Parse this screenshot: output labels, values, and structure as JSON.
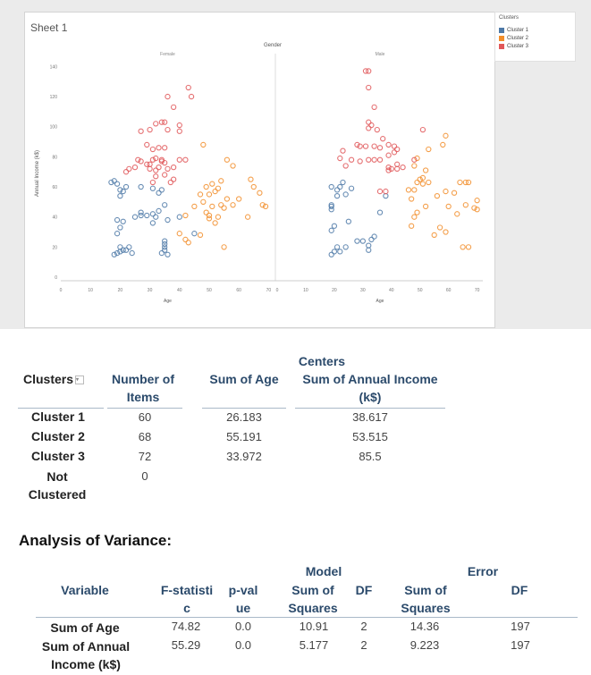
{
  "sheet": {
    "title": "Sheet 1"
  },
  "legend": {
    "title": "Clusters",
    "items": [
      {
        "label": "Cluster 1",
        "color": "#4e79a7"
      },
      {
        "label": "Cluster 2",
        "color": "#f28e2b"
      },
      {
        "label": "Cluster 3",
        "color": "#e15759"
      }
    ]
  },
  "chart_data": {
    "type": "scatter",
    "title": "",
    "column_header": "Gender",
    "panels": [
      "Female",
      "Male"
    ],
    "xlabel": "Age",
    "ylabel": "Annual Income (k$)",
    "xlim": [
      0,
      72
    ],
    "ylim": [
      0,
      145
    ],
    "xticks": [
      "0",
      "10",
      "20",
      "30",
      "40",
      "50",
      "60",
      "70"
    ],
    "yticks": [
      "0",
      "20",
      "40",
      "60",
      "80",
      "100",
      "120",
      "140"
    ],
    "series": [
      {
        "name": "Cluster 1",
        "color": "#4e79a7",
        "points": {
          "Female": [
            [
              18,
              15
            ],
            [
              19,
              16
            ],
            [
              20,
              17
            ],
            [
              21,
              18
            ],
            [
              20,
              20
            ],
            [
              19,
              29
            ],
            [
              20,
              33
            ],
            [
              21,
              37
            ],
            [
              19,
              38
            ],
            [
              25,
              40
            ],
            [
              27,
              41
            ],
            [
              29,
              41
            ],
            [
              31,
              42
            ],
            [
              32,
              40
            ],
            [
              33,
              44
            ],
            [
              35,
              48
            ],
            [
              36,
              38
            ],
            [
              31,
              36
            ],
            [
              27,
              43
            ],
            [
              40,
              40
            ],
            [
              45,
              29
            ],
            [
              36,
              15
            ],
            [
              35,
              18
            ],
            [
              35,
              20
            ],
            [
              35,
              22
            ],
            [
              35,
              24
            ],
            [
              34,
              16
            ],
            [
              24,
              16
            ],
            [
              23,
              20
            ],
            [
              22,
              18
            ],
            [
              20,
              54
            ],
            [
              21,
              57
            ],
            [
              20,
              58
            ],
            [
              17,
              63
            ],
            [
              18,
              64
            ],
            [
              19,
              62
            ],
            [
              22,
              60
            ],
            [
              27,
              60
            ],
            [
              31,
              59
            ],
            [
              33,
              56
            ],
            [
              34,
              58
            ]
          ],
          "Male": [
            [
              19,
              15
            ],
            [
              20,
              17
            ],
            [
              22,
              17
            ],
            [
              21,
              20
            ],
            [
              24,
              20
            ],
            [
              30,
              24
            ],
            [
              33,
              25
            ],
            [
              34,
              27
            ],
            [
              28,
              24
            ],
            [
              32,
              21
            ],
            [
              32,
              18
            ],
            [
              19,
              31
            ],
            [
              20,
              34
            ],
            [
              25,
              37
            ],
            [
              19,
              45
            ],
            [
              19,
              48
            ],
            [
              19,
              47
            ],
            [
              21,
              54
            ],
            [
              21,
              58
            ],
            [
              22,
              60
            ],
            [
              23,
              63
            ],
            [
              19,
              60
            ],
            [
              24,
              55
            ],
            [
              26,
              59
            ],
            [
              36,
              43
            ],
            [
              38,
              54
            ]
          ]
        }
      },
      {
        "name": "Cluster 2",
        "color": "#f28e2b",
        "points": {
          "Female": [
            [
              40,
              29
            ],
            [
              42,
              25
            ],
            [
              43,
              23
            ],
            [
              47,
              28
            ],
            [
              50,
              39
            ],
            [
              52,
              36
            ],
            [
              53,
              40
            ],
            [
              55,
              46
            ],
            [
              49,
              43
            ],
            [
              50,
              41
            ],
            [
              51,
              47
            ],
            [
              54,
              48
            ],
            [
              56,
              52
            ],
            [
              48,
              50
            ],
            [
              45,
              47
            ],
            [
              42,
              41
            ],
            [
              52,
              57
            ],
            [
              53,
              59
            ],
            [
              51,
              62
            ],
            [
              54,
              64
            ],
            [
              49,
              60
            ],
            [
              47,
              55
            ],
            [
              50,
              55
            ],
            [
              58,
              48
            ],
            [
              60,
              52
            ],
            [
              63,
              40
            ],
            [
              65,
              60
            ],
            [
              67,
              56
            ],
            [
              69,
              47
            ],
            [
              68,
              48
            ],
            [
              55,
              20
            ],
            [
              48,
              88
            ],
            [
              56,
              78
            ],
            [
              58,
              74
            ],
            [
              64,
              65
            ]
          ],
          "Male": [
            [
              47,
              34
            ],
            [
              48,
              40
            ],
            [
              49,
              43
            ],
            [
              52,
              47
            ],
            [
              55,
              28
            ],
            [
              57,
              33
            ],
            [
              59,
              30
            ],
            [
              60,
              47
            ],
            [
              63,
              42
            ],
            [
              65,
              20
            ],
            [
              67,
              20
            ],
            [
              66,
              48
            ],
            [
              70,
              45
            ],
            [
              69,
              46
            ],
            [
              70,
              51
            ],
            [
              67,
              63
            ],
            [
              66,
              63
            ],
            [
              64,
              63
            ],
            [
              62,
              56
            ],
            [
              59,
              57
            ],
            [
              56,
              54
            ],
            [
              53,
              63
            ],
            [
              48,
              58
            ],
            [
              49,
              63
            ],
            [
              50,
              65
            ],
            [
              51,
              66
            ],
            [
              47,
              52
            ],
            [
              46,
              58
            ],
            [
              48,
              74
            ],
            [
              49,
              79
            ],
            [
              53,
              85
            ],
            [
              58,
              88
            ],
            [
              59,
              94
            ],
            [
              52,
              71
            ],
            [
              51,
              62
            ]
          ]
        }
      },
      {
        "name": "Cluster 3",
        "color": "#e15759",
        "points": {
          "Female": [
            [
              36,
              120
            ],
            [
              38,
              113
            ],
            [
              43,
              126
            ],
            [
              44,
              120
            ],
            [
              27,
              97
            ],
            [
              30,
              98
            ],
            [
              32,
              102
            ],
            [
              34,
              103
            ],
            [
              35,
              103
            ],
            [
              36,
              98
            ],
            [
              40,
              101
            ],
            [
              40,
              97
            ],
            [
              29,
              88
            ],
            [
              31,
              85
            ],
            [
              33,
              86
            ],
            [
              35,
              86
            ],
            [
              32,
              79
            ],
            [
              34,
              78
            ],
            [
              27,
              77
            ],
            [
              29,
              75
            ],
            [
              30,
              72
            ],
            [
              31,
              78
            ],
            [
              32,
              71
            ],
            [
              26,
              78
            ],
            [
              25,
              73
            ],
            [
              22,
              70
            ],
            [
              23,
              72
            ],
            [
              30,
              75
            ],
            [
              33,
              73
            ],
            [
              35,
              76
            ],
            [
              36,
              72
            ],
            [
              38,
              73
            ],
            [
              40,
              78
            ],
            [
              42,
              78
            ],
            [
              35,
              68
            ],
            [
              37,
              63
            ],
            [
              38,
              65
            ],
            [
              32,
              67
            ],
            [
              31,
              63
            ],
            [
              34,
              77
            ]
          ],
          "Male": [
            [
              31,
              137
            ],
            [
              32,
              137
            ],
            [
              32,
              126
            ],
            [
              34,
              113
            ],
            [
              32,
              103
            ],
            [
              33,
              101
            ],
            [
              32,
              99
            ],
            [
              35,
              98
            ],
            [
              37,
              92
            ],
            [
              28,
              88
            ],
            [
              29,
              87
            ],
            [
              31,
              87
            ],
            [
              34,
              87
            ],
            [
              36,
              86
            ],
            [
              39,
              88
            ],
            [
              41,
              87
            ],
            [
              42,
              85
            ],
            [
              41,
              83
            ],
            [
              39,
              81
            ],
            [
              36,
              78
            ],
            [
              34,
              78
            ],
            [
              32,
              78
            ],
            [
              29,
              77
            ],
            [
              26,
              78
            ],
            [
              22,
              79
            ],
            [
              23,
              84
            ],
            [
              24,
              74
            ],
            [
              39,
              73
            ],
            [
              40,
              72
            ],
            [
              42,
              72
            ],
            [
              44,
              73
            ],
            [
              39,
              71
            ],
            [
              42,
              75
            ],
            [
              48,
              78
            ],
            [
              38,
              57
            ],
            [
              36,
              57
            ],
            [
              51,
              98
            ]
          ]
        }
      }
    ]
  },
  "clusters_table": {
    "header_centers": "Centers",
    "col_clusters": "Clusters",
    "col_items": "Number of Items",
    "col_age": "Sum of Age",
    "col_income": "Sum of Annual Income (k$)",
    "rows": [
      {
        "name": "Cluster 1",
        "items": "60",
        "age": "26.183",
        "income": "38.617"
      },
      {
        "name": "Cluster 2",
        "items": "68",
        "age": "55.191",
        "income": "53.515"
      },
      {
        "name": "Cluster 3",
        "items": "72",
        "age": "33.972",
        "income": "85.5"
      },
      {
        "name": "Not Clustered",
        "items": "0",
        "age": "",
        "income": ""
      }
    ]
  },
  "anova": {
    "title": "Analysis of Variance:",
    "header_model": "Model",
    "header_error": "Error",
    "col_variable": "Variable",
    "col_f": "F-statistic",
    "col_p": "p-value",
    "col_model_ss": "Sum of Squares",
    "col_model_df": "DF",
    "col_error_ss": "Sum of Squares",
    "col_error_df": "DF",
    "rows": [
      {
        "variable": "Sum of Age",
        "f": "74.82",
        "p": "0.0",
        "mss": "10.91",
        "mdf": "2",
        "ess": "14.36",
        "edf": "197"
      },
      {
        "variable": "Sum of Annual Income (k$)",
        "f": "55.29",
        "p": "0.0",
        "mss": "5.177",
        "mdf": "2",
        "ess": "9.223",
        "edf": "197"
      }
    ]
  }
}
